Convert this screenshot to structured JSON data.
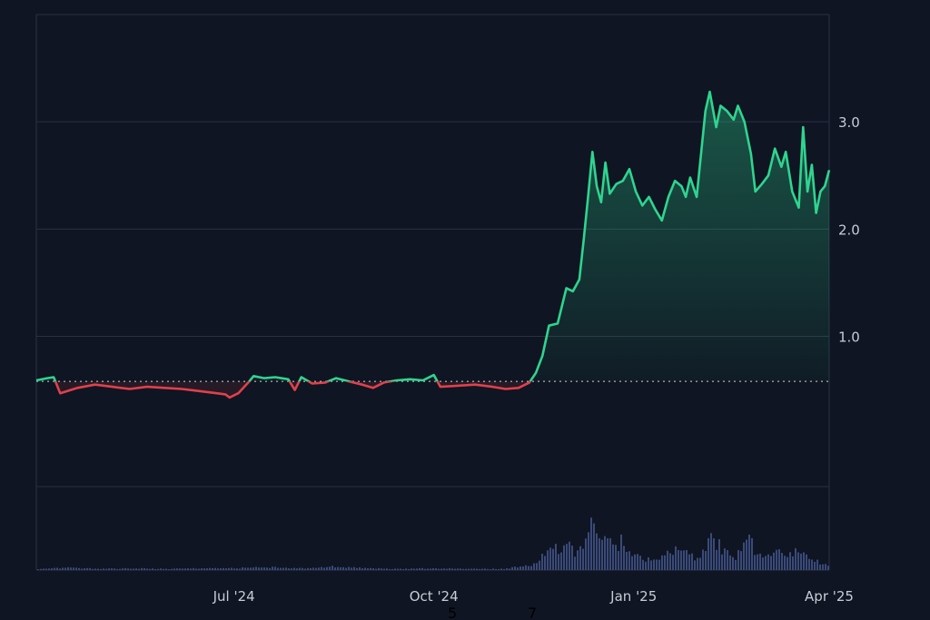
{
  "chart_data": {
    "type": "area",
    "baseline": 0.58,
    "ylim": [
      -0.4,
      4.0
    ],
    "xlim": [
      "2024-04-01",
      "2025-04-01"
    ],
    "y_ticks": [
      {
        "value": 1.0,
        "label": "1.0"
      },
      {
        "value": 2.0,
        "label": "2.0"
      },
      {
        "value": 3.0,
        "label": "3.0"
      }
    ],
    "x_ticks": [
      {
        "date": "2024-07-01",
        "label": "Jul '24"
      },
      {
        "date": "2024-10-01",
        "label": "Oct '24"
      },
      {
        "date": "2025-01-01",
        "label": "Jan '25"
      },
      {
        "date": "2025-04-01",
        "label": "Apr '25"
      }
    ],
    "grid": true,
    "colors": {
      "above": "#2fd48f",
      "below": "#e0414b",
      "volume": "#3a4a7a",
      "grid": "#2a3244",
      "baseline": "#cfd3da"
    },
    "series": [
      {
        "points": [
          [
            "2024-04-01",
            0.59
          ],
          [
            "2024-04-06",
            0.61
          ],
          [
            "2024-04-09",
            0.62
          ],
          [
            "2024-04-12",
            0.47
          ],
          [
            "2024-04-20",
            0.52
          ],
          [
            "2024-04-28",
            0.55
          ],
          [
            "2024-05-06",
            0.53
          ],
          [
            "2024-05-14",
            0.51
          ],
          [
            "2024-05-22",
            0.53
          ],
          [
            "2024-05-30",
            0.52
          ],
          [
            "2024-06-07",
            0.51
          ],
          [
            "2024-06-15",
            0.49
          ],
          [
            "2024-06-23",
            0.47
          ],
          [
            "2024-06-27",
            0.46
          ],
          [
            "2024-06-29",
            0.43
          ],
          [
            "2024-07-03",
            0.47
          ],
          [
            "2024-07-08",
            0.58
          ],
          [
            "2024-07-10",
            0.63
          ],
          [
            "2024-07-15",
            0.61
          ],
          [
            "2024-07-20",
            0.62
          ],
          [
            "2024-07-26",
            0.6
          ],
          [
            "2024-07-29",
            0.5
          ],
          [
            "2024-08-01",
            0.62
          ],
          [
            "2024-08-06",
            0.56
          ],
          [
            "2024-08-12",
            0.57
          ],
          [
            "2024-08-17",
            0.61
          ],
          [
            "2024-08-23",
            0.58
          ],
          [
            "2024-08-29",
            0.55
          ],
          [
            "2024-09-03",
            0.52
          ],
          [
            "2024-09-08",
            0.57
          ],
          [
            "2024-09-14",
            0.59
          ],
          [
            "2024-09-20",
            0.6
          ],
          [
            "2024-09-26",
            0.59
          ],
          [
            "2024-10-01",
            0.64
          ],
          [
            "2024-10-04",
            0.53
          ],
          [
            "2024-10-12",
            0.54
          ],
          [
            "2024-10-20",
            0.55
          ],
          [
            "2024-10-28",
            0.53
          ],
          [
            "2024-11-03",
            0.51
          ],
          [
            "2024-11-09",
            0.52
          ],
          [
            "2024-11-14",
            0.57
          ],
          [
            "2024-11-17",
            0.66
          ],
          [
            "2024-11-20",
            0.82
          ],
          [
            "2024-11-23",
            1.1
          ],
          [
            "2024-11-27",
            1.12
          ],
          [
            "2024-12-01",
            1.45
          ],
          [
            "2024-12-04",
            1.42
          ],
          [
            "2024-12-07",
            1.53
          ],
          [
            "2024-12-09",
            1.9
          ],
          [
            "2024-12-11",
            2.3
          ],
          [
            "2024-12-13",
            2.72
          ],
          [
            "2024-12-15",
            2.4
          ],
          [
            "2024-12-17",
            2.25
          ],
          [
            "2024-12-19",
            2.62
          ],
          [
            "2024-12-21",
            2.33
          ],
          [
            "2024-12-24",
            2.42
          ],
          [
            "2024-12-27",
            2.45
          ],
          [
            "2024-12-30",
            2.56
          ],
          [
            "2025-01-02",
            2.35
          ],
          [
            "2025-01-05",
            2.22
          ],
          [
            "2025-01-08",
            2.3
          ],
          [
            "2025-01-11",
            2.18
          ],
          [
            "2025-01-14",
            2.08
          ],
          [
            "2025-01-17",
            2.3
          ],
          [
            "2025-01-20",
            2.45
          ],
          [
            "2025-01-23",
            2.4
          ],
          [
            "2025-01-25",
            2.3
          ],
          [
            "2025-01-27",
            2.48
          ],
          [
            "2025-01-30",
            2.3
          ],
          [
            "2025-02-01",
            2.7
          ],
          [
            "2025-02-03",
            3.1
          ],
          [
            "2025-02-05",
            3.28
          ],
          [
            "2025-02-08",
            2.95
          ],
          [
            "2025-02-10",
            3.15
          ],
          [
            "2025-02-13",
            3.1
          ],
          [
            "2025-02-16",
            3.02
          ],
          [
            "2025-02-18",
            3.15
          ],
          [
            "2025-02-21",
            3.0
          ],
          [
            "2025-02-24",
            2.7
          ],
          [
            "2025-02-26",
            2.35
          ],
          [
            "2025-03-01",
            2.42
          ],
          [
            "2025-03-04",
            2.5
          ],
          [
            "2025-03-07",
            2.75
          ],
          [
            "2025-03-10",
            2.58
          ],
          [
            "2025-03-12",
            2.72
          ],
          [
            "2025-03-15",
            2.35
          ],
          [
            "2025-03-18",
            2.2
          ],
          [
            "2025-03-20",
            2.95
          ],
          [
            "2025-03-22",
            2.35
          ],
          [
            "2025-03-24",
            2.6
          ],
          [
            "2025-03-26",
            2.15
          ],
          [
            "2025-03-28",
            2.35
          ],
          [
            "2025-03-30",
            2.4
          ],
          [
            "2025-04-01",
            2.55
          ]
        ]
      }
    ],
    "volume": {
      "ylim": [
        0,
        1
      ],
      "points": [
        [
          "2024-04-01",
          0.02
        ],
        [
          "2024-04-15",
          0.04
        ],
        [
          "2024-05-01",
          0.02
        ],
        [
          "2024-05-15",
          0.03
        ],
        [
          "2024-06-01",
          0.02
        ],
        [
          "2024-06-15",
          0.03
        ],
        [
          "2024-07-01",
          0.03
        ],
        [
          "2024-07-15",
          0.05
        ],
        [
          "2024-08-01",
          0.03
        ],
        [
          "2024-08-15",
          0.06
        ],
        [
          "2024-09-01",
          0.03
        ],
        [
          "2024-09-15",
          0.02
        ],
        [
          "2024-10-01",
          0.03
        ],
        [
          "2024-10-15",
          0.02
        ],
        [
          "2024-11-01",
          0.02
        ],
        [
          "2024-11-15",
          0.08
        ],
        [
          "2024-11-20",
          0.25
        ],
        [
          "2024-11-24",
          0.4
        ],
        [
          "2024-11-28",
          0.3
        ],
        [
          "2024-12-02",
          0.38
        ],
        [
          "2024-12-06",
          0.28
        ],
        [
          "2024-12-10",
          0.6
        ],
        [
          "2024-12-12",
          1.0
        ],
        [
          "2024-12-14",
          0.72
        ],
        [
          "2024-12-16",
          0.4
        ],
        [
          "2024-12-19",
          0.55
        ],
        [
          "2024-12-22",
          0.35
        ],
        [
          "2024-12-26",
          0.5
        ],
        [
          "2024-12-29",
          0.3
        ],
        [
          "2025-01-02",
          0.25
        ],
        [
          "2025-01-06",
          0.18
        ],
        [
          "2025-01-10",
          0.15
        ],
        [
          "2025-01-14",
          0.22
        ],
        [
          "2025-01-18",
          0.3
        ],
        [
          "2025-01-22",
          0.35
        ],
        [
          "2025-01-26",
          0.25
        ],
        [
          "2025-01-30",
          0.2
        ],
        [
          "2025-02-03",
          0.4
        ],
        [
          "2025-02-05",
          0.62
        ],
        [
          "2025-02-08",
          0.45
        ],
        [
          "2025-02-12",
          0.28
        ],
        [
          "2025-02-16",
          0.2
        ],
        [
          "2025-02-20",
          0.45
        ],
        [
          "2025-02-22",
          0.72
        ],
        [
          "2025-02-25",
          0.3
        ],
        [
          "2025-03-01",
          0.2
        ],
        [
          "2025-03-05",
          0.25
        ],
        [
          "2025-03-09",
          0.3
        ],
        [
          "2025-03-13",
          0.22
        ],
        [
          "2025-03-17",
          0.32
        ],
        [
          "2025-03-20",
          0.24
        ],
        [
          "2025-03-24",
          0.18
        ],
        [
          "2025-03-28",
          0.1
        ],
        [
          "2025-04-01",
          0.06
        ]
      ]
    }
  },
  "misc_labels": [
    "5",
    "7"
  ]
}
